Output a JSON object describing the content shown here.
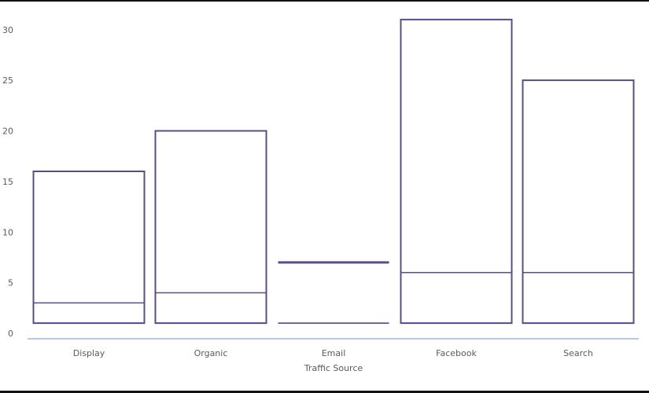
{
  "chart_data": {
    "type": "bar",
    "title": "",
    "xlabel": "Traffic Source",
    "ylabel": "",
    "categories": [
      "Display",
      "Organic",
      "Email",
      "Facebook",
      "Search"
    ],
    "series": [
      {
        "values": [
          16,
          20,
          7,
          31,
          25
        ]
      }
    ],
    "inner_lines": [
      3,
      4,
      1,
      6,
      6
    ],
    "baseline_lines": [
      1,
      1,
      1,
      1,
      1
    ],
    "ylim": [
      0,
      32
    ],
    "yticks": [
      0,
      5,
      10,
      15,
      20,
      25,
      30
    ],
    "grid": false,
    "colors": {
      "bar_stroke": "#5b4b86",
      "axis_line": "#b8c7e6",
      "text": "#5b5b5b"
    }
  }
}
